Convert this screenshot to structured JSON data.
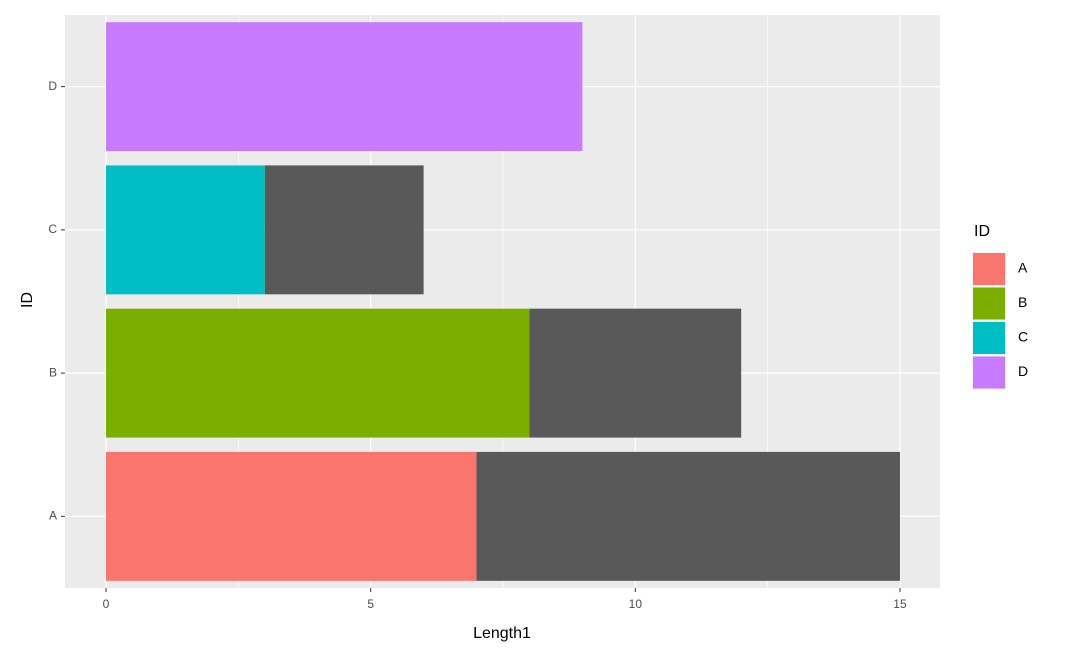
{
  "chart_data": {
    "type": "stacked-barh",
    "x_label": "Length1",
    "y_label": "ID",
    "categories": [
      "A",
      "B",
      "C",
      "D"
    ],
    "series": [
      {
        "colors": [
          "#F8766D",
          "#7CAE00",
          "#00BFC4",
          "#C77CFF"
        ],
        "values": [
          7,
          8,
          3,
          9
        ]
      },
      {
        "color": "#595959",
        "values": [
          8,
          4,
          3,
          null
        ]
      }
    ],
    "xlim": [
      -0.775,
      15.756
    ],
    "xticks": [
      0,
      5,
      10,
      15
    ],
    "x_minor_ticks": [
      2.5,
      7.5,
      12.5
    ],
    "grid": true,
    "legend": {
      "title": "ID",
      "position": "right"
    }
  }
}
